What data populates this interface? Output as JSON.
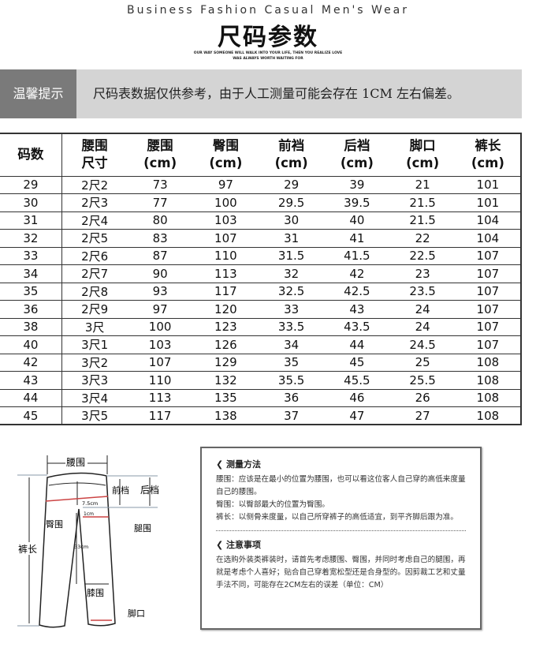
{
  "header": {
    "subtitle": "Business Fashion Casual Men's Wear",
    "title": "尺码参数",
    "tagline1": "OUR WAY SOMEONE WILL WALK INTO YOUR LIFE, THEN YOU REALIZE LOVE",
    "tagline2": "WAS ALWAYS WORTH WAITING FOR"
  },
  "banner": {
    "label": "温馨提示",
    "text": "尺码表数据仅供参考，由于人工测量可能会存在 1CM 左右偏差。"
  },
  "table": {
    "headers": [
      [
        "码数",
        ""
      ],
      [
        "腰围",
        "尺寸"
      ],
      [
        "腰围",
        "(cm)"
      ],
      [
        "臀围",
        "(cm)"
      ],
      [
        "前裆",
        "(cm)"
      ],
      [
        "后裆",
        "(cm)"
      ],
      [
        "脚口",
        "(cm)"
      ],
      [
        "裤长",
        "(cm)"
      ]
    ],
    "rows": [
      [
        "29",
        "2尺2",
        "73",
        "97",
        "29",
        "39",
        "21",
        "101"
      ],
      [
        "30",
        "2尺3",
        "77",
        "100",
        "29.5",
        "39.5",
        "21.5",
        "101"
      ],
      [
        "31",
        "2尺4",
        "80",
        "103",
        "30",
        "40",
        "21.5",
        "104"
      ],
      [
        "32",
        "2尺5",
        "83",
        "107",
        "31",
        "41",
        "22",
        "104"
      ],
      [
        "33",
        "2尺6",
        "87",
        "110",
        "31.5",
        "41.5",
        "22.5",
        "107"
      ],
      [
        "34",
        "2尺7",
        "90",
        "113",
        "32",
        "42",
        "23",
        "107"
      ],
      [
        "35",
        "2尺8",
        "93",
        "117",
        "32.5",
        "42.5",
        "23.5",
        "107"
      ],
      [
        "36",
        "2尺9",
        "97",
        "120",
        "33",
        "43",
        "24",
        "107"
      ],
      [
        "38",
        "3尺",
        "100",
        "123",
        "33.5",
        "43.5",
        "24",
        "107"
      ],
      [
        "40",
        "3尺1",
        "103",
        "126",
        "34",
        "44",
        "24.5",
        "107"
      ],
      [
        "42",
        "3尺2",
        "107",
        "129",
        "35",
        "45",
        "25",
        "108"
      ],
      [
        "43",
        "3尺3",
        "110",
        "132",
        "35.5",
        "45.5",
        "25.5",
        "108"
      ],
      [
        "44",
        "3尺4",
        "113",
        "135",
        "36",
        "46",
        "26",
        "108"
      ],
      [
        "45",
        "3尺5",
        "117",
        "138",
        "37",
        "47",
        "27",
        "108"
      ]
    ]
  },
  "diagram": {
    "waist": "腰围",
    "front_rise": "前档",
    "back_rise": "后档",
    "hip": "臀围",
    "thigh": "腿围",
    "length": "裤长",
    "knee": "膝围",
    "hem": "脚口",
    "m1": "7.5cm",
    "m2": "1cm",
    "m3": "33cm"
  },
  "notes": {
    "method_title": "测量方法",
    "method": [
      "腰围：应该是在最小的位置为腰围，也可以看这位客人自己穿的高低来度量自己的腰围。",
      "臀围：以臀部最大的位置为臀围。",
      "裤长：以侧骨来度量，以自己所穿裤子的高低适宜，到平齐脚后跟为准。"
    ],
    "attention_title": "注意事项",
    "attention": "在选购外装类裤装时，请首先考虑腰围、臀围，并同时考虑自己的腿围，再就是考虑个人喜好；贴合自己穿着宽松型还是合身型的。因剪裁工艺和丈量手法不同，可能存在2CM左右的误差（单位：CM）"
  }
}
